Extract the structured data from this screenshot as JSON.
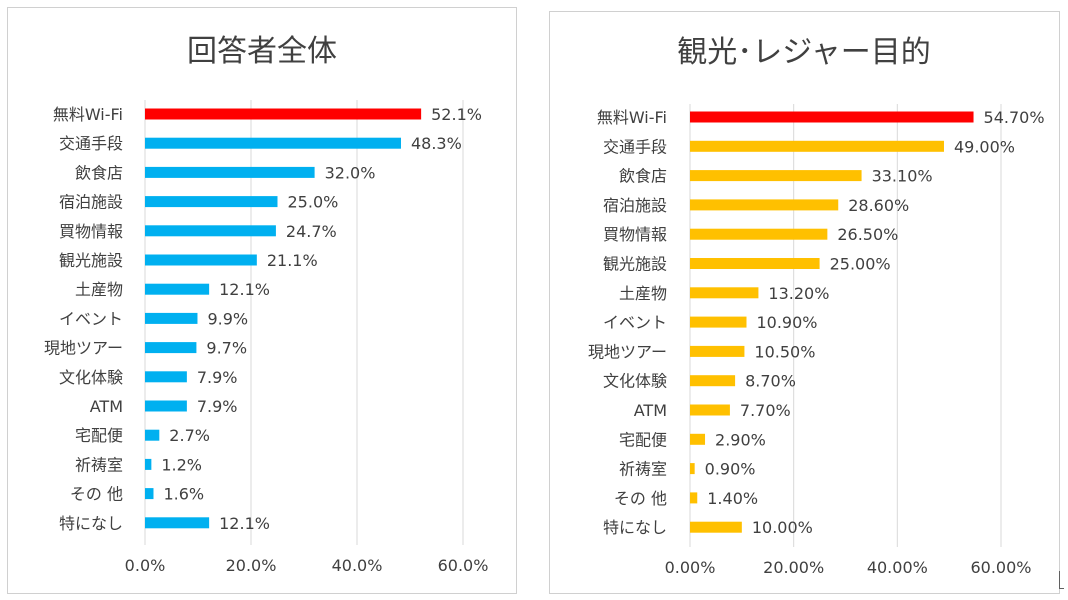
{
  "chart_data": [
    {
      "type": "bar",
      "orientation": "horizontal",
      "title": "回答者全体",
      "categories": [
        "無料Wi-Fi",
        "交通手段",
        "飲食店",
        "宿泊施設",
        "買物情報",
        "観光施設",
        "土産物",
        "イベント",
        "現地ツアー",
        "文化体験",
        "ATM",
        "宅配便",
        "祈祷室",
        "その 他",
        "特になし"
      ],
      "values": [
        52.1,
        48.3,
        32.0,
        25.0,
        24.7,
        21.1,
        12.1,
        9.9,
        9.7,
        7.9,
        7.9,
        2.7,
        1.2,
        1.6,
        12.1
      ],
      "value_labels": [
        "52.1%",
        "48.3%",
        "32.0%",
        "25.0%",
        "24.7%",
        "21.1%",
        "12.1%",
        "9.9%",
        "9.7%",
        "7.9%",
        "7.9%",
        "2.7%",
        "1.2%",
        "1.6%",
        "12.1%"
      ],
      "xlim": [
        0,
        60
      ],
      "x_ticks": [
        0,
        20,
        40,
        60
      ],
      "x_tick_labels": [
        "0.0%",
        "20.0%",
        "40.0%",
        "60.0%"
      ],
      "grid": true,
      "colors": {
        "highlight": "#ff0000",
        "bar": "#00b0f0"
      },
      "highlight_index": 0
    },
    {
      "type": "bar",
      "orientation": "horizontal",
      "title": "観光･レジャー目的",
      "categories": [
        "無料Wi-Fi",
        "交通手段",
        "飲食店",
        "宿泊施設",
        "買物情報",
        "観光施設",
        "土産物",
        "イベント",
        "現地ツアー",
        "文化体験",
        "ATM",
        "宅配便",
        "祈祷室",
        "その 他",
        "特になし"
      ],
      "values": [
        54.7,
        49.0,
        33.1,
        28.6,
        26.5,
        25.0,
        13.2,
        10.9,
        10.5,
        8.7,
        7.7,
        2.9,
        0.9,
        1.4,
        10.0
      ],
      "value_labels": [
        "54.70%",
        "49.00%",
        "33.10%",
        "28.60%",
        "26.50%",
        "25.00%",
        "13.20%",
        "10.90%",
        "10.50%",
        "8.70%",
        "7.70%",
        "2.90%",
        "0.90%",
        "1.40%",
        "10.00%"
      ],
      "xlim": [
        0,
        60
      ],
      "x_ticks": [
        0,
        20,
        40,
        60
      ],
      "x_tick_labels": [
        "0.00%",
        "20.00%",
        "40.00%",
        "60.00%"
      ],
      "grid": true,
      "colors": {
        "highlight": "#ff0000",
        "bar": "#ffc000"
      },
      "highlight_index": 0
    }
  ]
}
